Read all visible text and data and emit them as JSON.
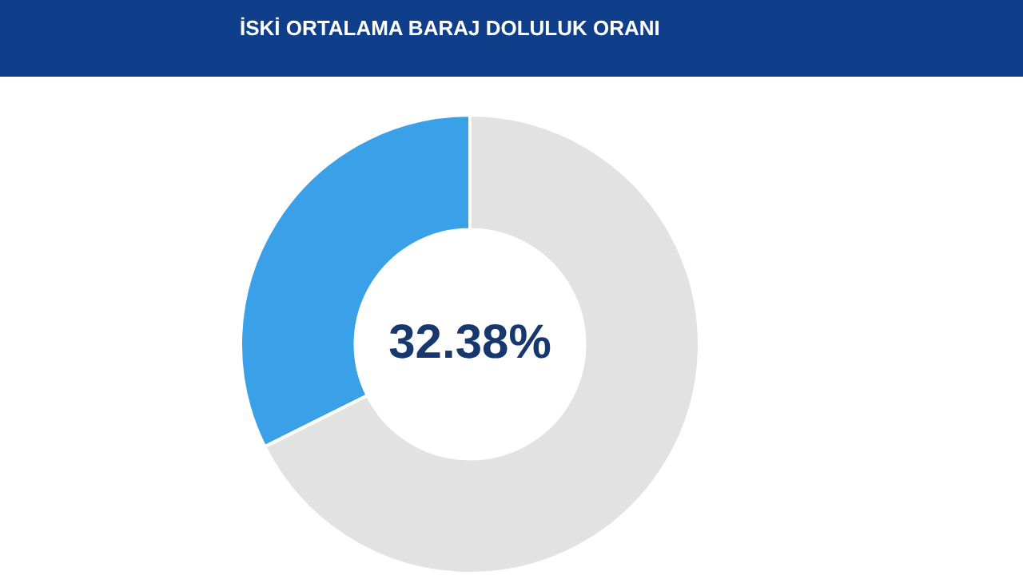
{
  "chart_data": {
    "type": "donut",
    "title": "İSKİ ORTALAMA BARAJ DOLULUK ORANI",
    "categories": [
      null,
      null
    ],
    "values": [
      32.38,
      67.62
    ],
    "colors": [
      "#3aa0e8",
      "#e2e2e2"
    ],
    "value_labels": [
      "32.38%",
      null
    ]
  }
}
